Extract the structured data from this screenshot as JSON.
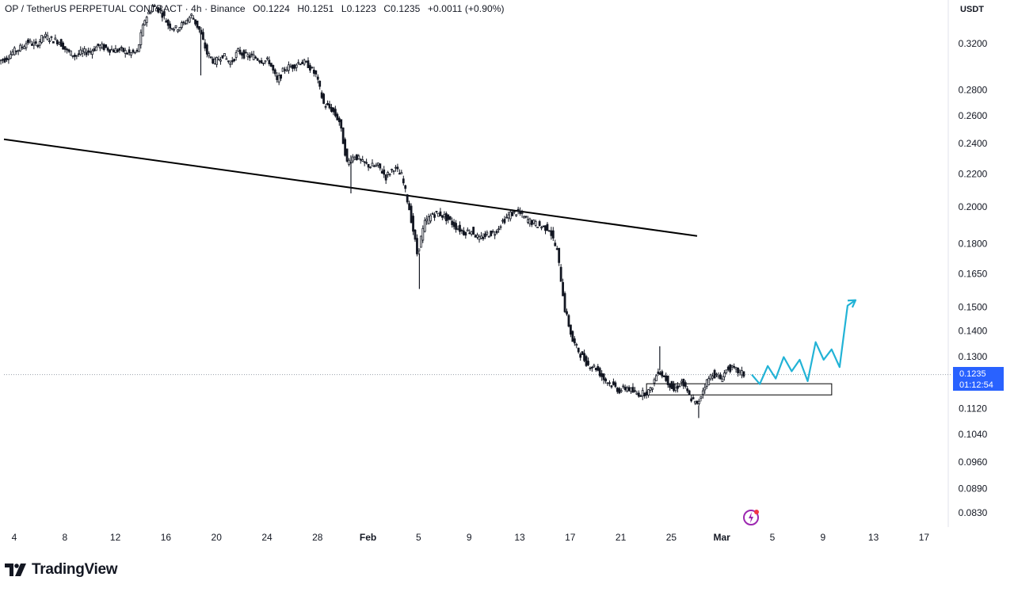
{
  "header": {
    "symbol": "OP / TetherUS PERPETUAL CONTRACT · 4h · Binance",
    "open": "O0.1224",
    "high": "H0.1251",
    "low": "L0.1223",
    "close": "C0.1235",
    "change": "+0.0011 (+0.90%)",
    "currency": "USDT"
  },
  "price_tag": {
    "price": "0.1235",
    "countdown": "01:12:54"
  },
  "brand": {
    "name": "TradingView"
  },
  "colors": {
    "up": "#131722",
    "down": "#131722",
    "projection": "#22b3d6",
    "price_tag": "#2962ff",
    "last_price_line": "#9aa0ab"
  },
  "chart_data": {
    "type": "line",
    "scale": "log",
    "ylim": [
      0.079,
      0.35
    ],
    "ylabel": "",
    "xlabel": "",
    "y_ticks": [
      "0.3200",
      "0.2800",
      "0.2600",
      "0.2400",
      "0.2200",
      "0.2000",
      "0.1800",
      "0.1650",
      "0.1500",
      "0.1400",
      "0.1300",
      "0.1120",
      "0.1040",
      "0.0960",
      "0.0890",
      "0.0830"
    ],
    "x_ticks": [
      "4",
      "8",
      "12",
      "16",
      "20",
      "24",
      "28",
      "Feb",
      "5",
      "9",
      "13",
      "17",
      "21",
      "25",
      "Mar",
      "5",
      "9",
      "13",
      "17"
    ],
    "series": [
      {
        "values": [
          [
            0,
            0.306
          ],
          [
            1,
            0.312
          ],
          [
            2,
            0.316
          ],
          [
            3,
            0.322
          ],
          [
            4,
            0.318
          ],
          [
            5,
            0.327
          ],
          [
            6,
            0.324
          ],
          [
            7,
            0.322
          ],
          [
            8,
            0.313
          ],
          [
            9,
            0.309
          ],
          [
            10,
            0.312
          ],
          [
            11,
            0.313
          ],
          [
            12,
            0.318
          ],
          [
            13,
            0.316
          ],
          [
            14,
            0.314
          ],
          [
            15,
            0.314
          ],
          [
            16,
            0.311
          ],
          [
            17,
            0.312
          ],
          [
            18,
            0.343
          ],
          [
            19,
            0.356
          ],
          [
            20,
            0.352
          ],
          [
            21,
            0.338
          ],
          [
            22,
            0.334
          ],
          [
            23,
            0.339
          ],
          [
            24,
            0.347
          ],
          [
            25,
            0.333
          ],
          [
            26,
            0.311
          ],
          [
            27,
            0.303
          ],
          [
            28,
            0.31
          ],
          [
            29,
            0.302
          ],
          [
            30,
            0.313
          ],
          [
            31,
            0.309
          ],
          [
            32,
            0.308
          ],
          [
            33,
            0.305
          ],
          [
            34,
            0.304
          ],
          [
            35,
            0.287
          ],
          [
            36,
            0.298
          ],
          [
            37,
            0.3
          ],
          [
            38,
            0.304
          ],
          [
            39,
            0.301
          ],
          [
            40,
            0.292
          ],
          [
            41,
            0.269
          ],
          [
            42,
            0.265
          ],
          [
            43,
            0.256
          ],
          [
            44,
            0.227
          ],
          [
            45,
            0.232
          ],
          [
            46,
            0.227
          ],
          [
            47,
            0.225
          ],
          [
            48,
            0.225
          ],
          [
            49,
            0.218
          ],
          [
            50,
            0.224
          ],
          [
            51,
            0.219
          ],
          [
            52,
            0.199
          ],
          [
            53,
            0.175
          ],
          [
            54,
            0.191
          ],
          [
            55,
            0.196
          ],
          [
            56,
            0.196
          ],
          [
            57,
            0.193
          ],
          [
            58,
            0.189
          ],
          [
            59,
            0.186
          ],
          [
            60,
            0.187
          ],
          [
            61,
            0.182
          ],
          [
            62,
            0.185
          ],
          [
            63,
            0.186
          ],
          [
            64,
            0.192
          ],
          [
            65,
            0.196
          ],
          [
            66,
            0.197
          ],
          [
            67,
            0.193
          ],
          [
            68,
            0.191
          ],
          [
            69,
            0.189
          ],
          [
            70,
            0.188
          ],
          [
            71,
            0.176
          ],
          [
            72,
            0.149
          ],
          [
            73,
            0.136
          ],
          [
            74,
            0.131
          ],
          [
            75,
            0.127
          ],
          [
            76,
            0.126
          ],
          [
            77,
            0.122
          ],
          [
            78,
            0.12
          ],
          [
            79,
            0.118
          ],
          [
            80,
            0.119
          ],
          [
            81,
            0.117
          ],
          [
            82,
            0.117
          ],
          [
            83,
            0.118
          ],
          [
            84,
            0.125
          ],
          [
            85,
            0.122
          ],
          [
            86,
            0.118
          ],
          [
            87,
            0.121
          ],
          [
            88,
            0.116
          ],
          [
            89,
            0.113
          ],
          [
            90,
            0.12
          ],
          [
            91,
            0.124
          ],
          [
            92,
            0.122
          ],
          [
            93,
            0.126
          ],
          [
            94,
            0.125
          ],
          [
            95,
            0.1235
          ]
        ]
      }
    ],
    "resistance_line": [
      [
        0,
        0.243
      ],
      [
        89,
        0.184
      ]
    ],
    "support_zone": [
      0.1165,
      0.1203
    ],
    "last_price": 0.1235,
    "projection_path": [
      0.1235,
      0.1202,
      0.1266,
      0.1221,
      0.1299,
      0.1247,
      0.1289,
      0.1212,
      0.1356,
      0.1289,
      0.1328,
      0.1262,
      0.1506,
      0.153
    ]
  }
}
